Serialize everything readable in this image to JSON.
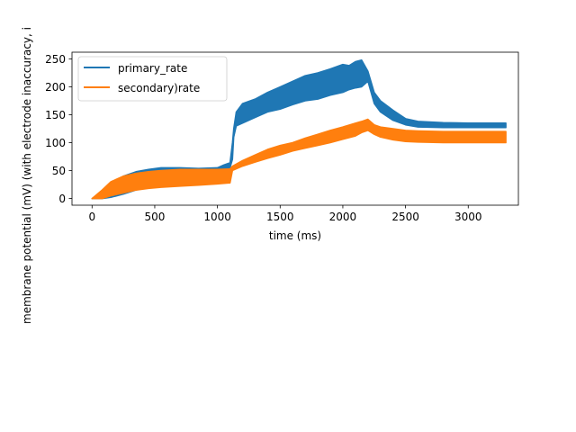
{
  "chart_data": {
    "type": "line",
    "xlabel": "time (ms)",
    "ylabel": "membrane potential (mV) (with electrode inaccuracy, i",
    "xlim": [
      -160,
      3400
    ],
    "ylim": [
      -12,
      262
    ],
    "xticks": [
      0,
      500,
      1000,
      1500,
      2000,
      2500,
      3000
    ],
    "yticks": [
      0,
      50,
      100,
      150,
      200,
      250
    ],
    "legend_position": "upper-left",
    "series": [
      {
        "name": "primary_rate",
        "color": "#1f77b4",
        "upper": {
          "x": [
            0,
            80,
            150,
            250,
            350,
            450,
            550,
            700,
            850,
            1000,
            1050,
            1100,
            1120,
            1130,
            1150,
            1200,
            1300,
            1400,
            1500,
            1600,
            1700,
            1800,
            1900,
            2000,
            2050,
            2100,
            2150,
            2200,
            2250,
            2300,
            2400,
            2500,
            2600,
            2800,
            3000,
            3300
          ],
          "y": [
            0,
            10,
            25,
            40,
            48,
            52,
            55,
            55,
            54,
            55,
            60,
            64,
            100,
            125,
            155,
            170,
            178,
            190,
            200,
            210,
            220,
            225,
            232,
            240,
            238,
            245,
            248,
            228,
            190,
            175,
            158,
            143,
            138,
            136,
            135,
            135
          ]
        },
        "lower": {
          "x": [
            0,
            80,
            150,
            250,
            350,
            450,
            550,
            700,
            850,
            1000,
            1050,
            1100,
            1120,
            1130,
            1150,
            1200,
            1300,
            1400,
            1500,
            1600,
            1700,
            1800,
            1900,
            2000,
            2050,
            2100,
            2150,
            2200,
            2250,
            2300,
            2400,
            2500,
            2600,
            2800,
            3000,
            3300
          ],
          "y": [
            0,
            0,
            2,
            8,
            15,
            22,
            28,
            32,
            36,
            40,
            45,
            55,
            70,
            110,
            130,
            135,
            145,
            155,
            160,
            168,
            175,
            178,
            185,
            190,
            195,
            198,
            200,
            210,
            170,
            155,
            140,
            132,
            128,
            127,
            127,
            127
          ]
        }
      },
      {
        "name": "secondary)rate",
        "color": "#ff7f0e",
        "upper": {
          "x": [
            0,
            80,
            150,
            250,
            350,
            450,
            550,
            700,
            850,
            1000,
            1100,
            1120,
            1200,
            1300,
            1400,
            1500,
            1600,
            1700,
            1800,
            1900,
            2000,
            2100,
            2150,
            2200,
            2250,
            2300,
            2400,
            2500,
            2600,
            2800,
            3000,
            3300
          ],
          "y": [
            0,
            15,
            30,
            40,
            45,
            48,
            50,
            52,
            52,
            52,
            53,
            58,
            68,
            78,
            88,
            95,
            100,
            108,
            115,
            122,
            128,
            135,
            138,
            142,
            132,
            128,
            125,
            122,
            121,
            120,
            120,
            120
          ]
        },
        "lower": {
          "x": [
            0,
            80,
            150,
            250,
            350,
            450,
            550,
            700,
            850,
            1000,
            1100,
            1120,
            1200,
            1300,
            1400,
            1500,
            1600,
            1700,
            1800,
            1900,
            2000,
            2100,
            2150,
            2200,
            2250,
            2300,
            2400,
            2500,
            2600,
            2800,
            3000,
            3300
          ],
          "y": [
            0,
            0,
            5,
            10,
            15,
            18,
            20,
            22,
            24,
            26,
            28,
            50,
            58,
            65,
            72,
            78,
            85,
            90,
            95,
            100,
            106,
            112,
            118,
            122,
            115,
            110,
            105,
            102,
            101,
            100,
            100,
            100
          ]
        }
      }
    ]
  }
}
